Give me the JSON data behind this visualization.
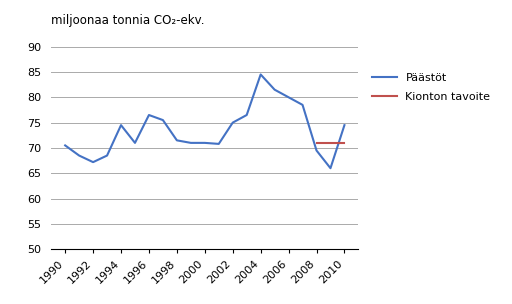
{
  "years": [
    1990,
    1991,
    1992,
    1993,
    1994,
    1995,
    1996,
    1997,
    1998,
    1999,
    2000,
    2001,
    2002,
    2003,
    2004,
    2005,
    2006,
    2007,
    2008,
    2009,
    2010
  ],
  "emissions": [
    70.5,
    68.5,
    67.2,
    68.5,
    74.5,
    71.0,
    76.5,
    75.5,
    71.5,
    71.0,
    71.0,
    70.8,
    75.0,
    76.5,
    84.5,
    81.5,
    80.0,
    78.5,
    69.5,
    66.0,
    74.5
  ],
  "kyoto_start": 2008,
  "kyoto_end": 2010,
  "kyoto_value": 71.0,
  "line_color": "#4472C4",
  "kyoto_color": "#C0504D",
  "ylabel": "miljoonaa tonnia CO₂-ekv.",
  "legend_emissions": "Päästöt",
  "legend_kyoto": "Kionton tavoite",
  "ylim": [
    50,
    92
  ],
  "yticks": [
    50,
    55,
    60,
    65,
    70,
    75,
    80,
    85,
    90
  ],
  "xticks": [
    1990,
    1992,
    1994,
    1996,
    1998,
    2000,
    2002,
    2004,
    2006,
    2008,
    2010
  ],
  "bg_color": "#FFFFFF",
  "plot_bg": "#FFFFFF",
  "grid_color": "#AAAAAA",
  "label_fontsize": 8,
  "ylabel_fontsize": 8.5
}
